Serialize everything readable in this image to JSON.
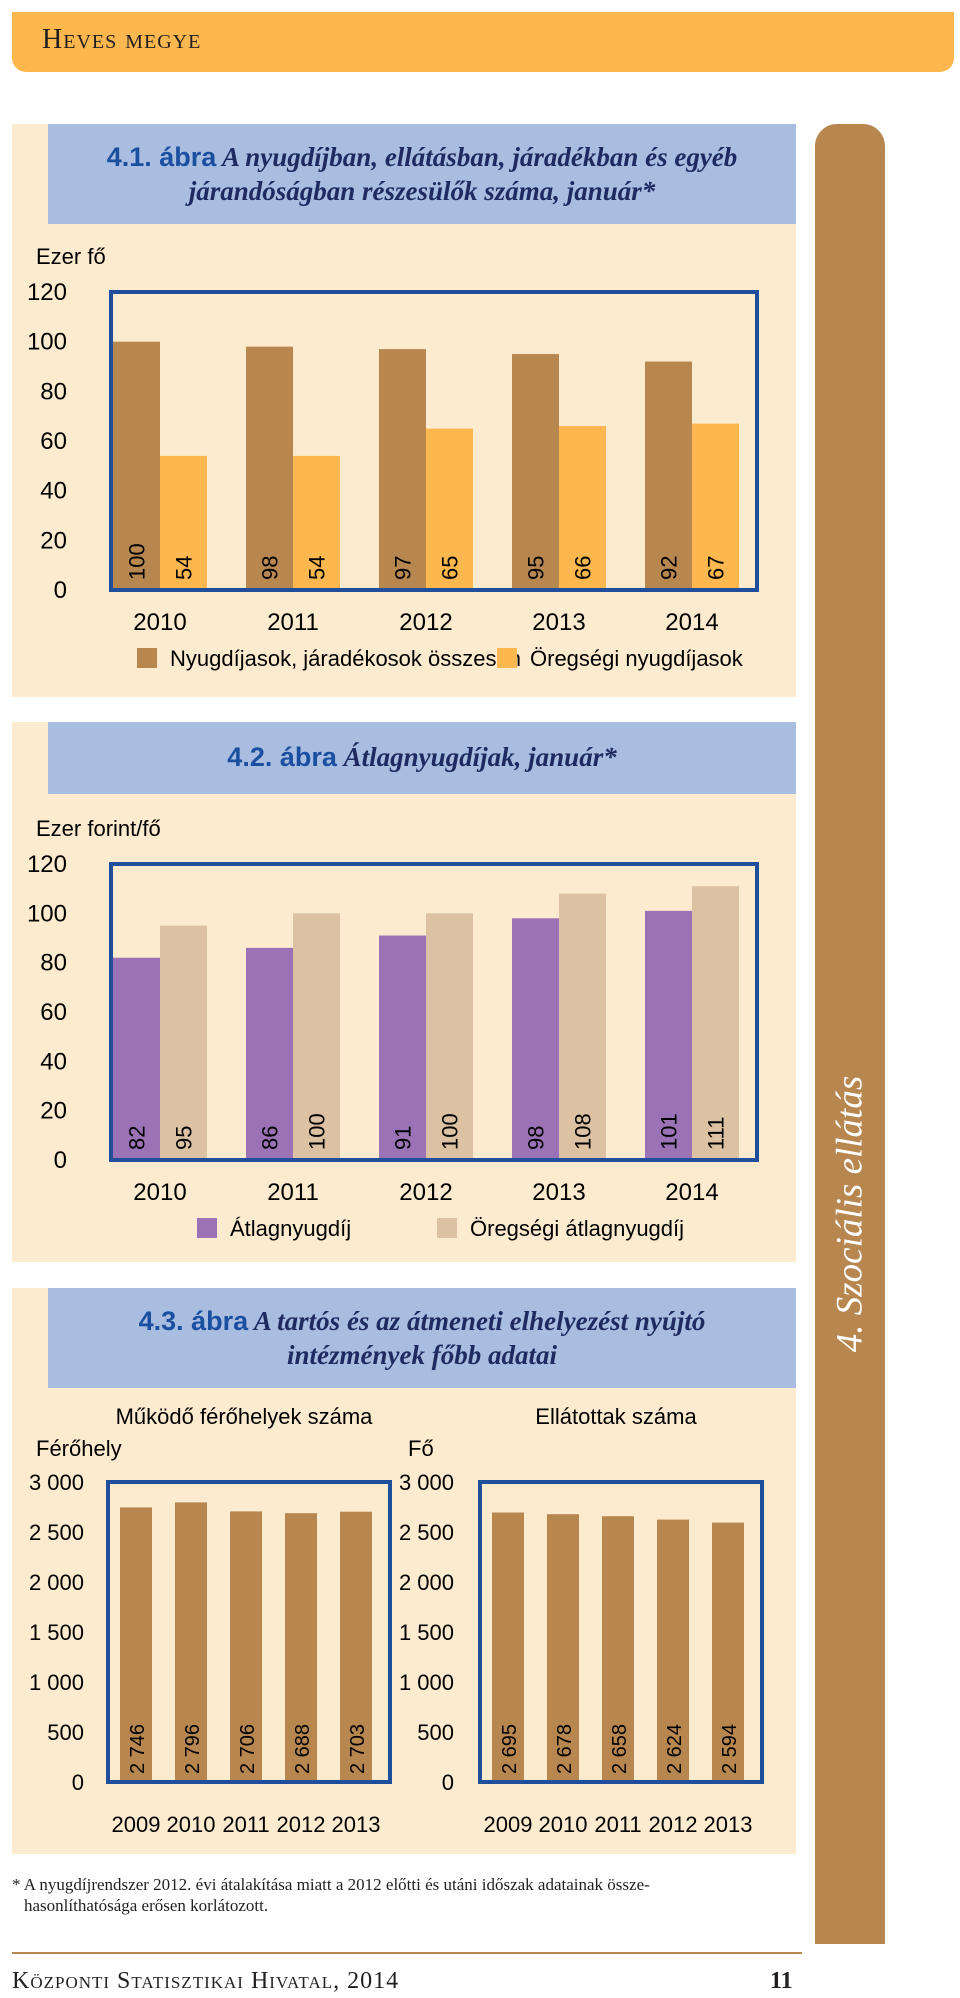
{
  "header": {
    "title": "Heves megye"
  },
  "side_tab": {
    "label": "4. Szociális ellátás"
  },
  "figures": {
    "fig1": {
      "number": "4.1. ábra",
      "title_line1": "A nyugdíjban, ellátásban, járadékban és egyéb",
      "title_line2": "járandóságban részesülők száma, január*"
    },
    "fig2": {
      "number": "4.2. ábra",
      "title": "Átlagnyugdíjak, január*"
    },
    "fig3": {
      "number": "4.3. ábra",
      "title_line1": "A tartós és az átmeneti elhelyezést nyújtó",
      "title_line2": "intézmények főbb adatai"
    }
  },
  "colors": {
    "brown": "#b8864f",
    "yellow": "#fcb74f",
    "purple": "#9a72b5",
    "beige": "#dcc1a2",
    "axis_blue": "#1f4e9c",
    "panel_bg": "#fdebcf",
    "title_bg": "#a9bde0"
  },
  "chart_data": [
    {
      "type": "bar",
      "title": "A nyugdíjban, ellátásban, járadékban és egyéb járandóságban részesülők száma, január*",
      "ylabel": "Ezer fő",
      "yticks": [
        "120",
        "100",
        "80",
        "60",
        "40",
        "20",
        "0"
      ],
      "ylim": [
        0,
        120
      ],
      "categories": [
        "2010",
        "2011",
        "2012",
        "2013",
        "2014"
      ],
      "series": [
        {
          "name": "Nyugdíjasok, járadékosok összesen",
          "color": "#b8864f",
          "values": [
            100,
            98,
            97,
            95,
            92
          ]
        },
        {
          "name": "Öregségi nyugdíjasok",
          "color": "#fcb74f",
          "values": [
            54,
            54,
            65,
            66,
            67
          ]
        }
      ],
      "legend": "bottom",
      "grid": false
    },
    {
      "type": "bar",
      "title": "Átlagnyugdíjak, január*",
      "ylabel": "Ezer forint/fő",
      "yticks": [
        "120",
        "100",
        "80",
        "60",
        "40",
        "20",
        "0"
      ],
      "ylim": [
        0,
        120
      ],
      "categories": [
        "2010",
        "2011",
        "2012",
        "2013",
        "2014"
      ],
      "series": [
        {
          "name": "Átlagnyugdíj",
          "color": "#9a72b5",
          "values": [
            82,
            86,
            91,
            98,
            101
          ]
        },
        {
          "name": "Öregségi átlagnyugdíj",
          "color": "#dcc1a2",
          "values": [
            95,
            100,
            100,
            108,
            111
          ]
        }
      ],
      "legend": "bottom",
      "grid": false
    },
    {
      "type": "bar",
      "subtitle": "Működő férőhelyek száma",
      "ylabel": "Férőhely",
      "yticks": [
        "3 000",
        "2 500",
        "2 000",
        "1 500",
        "1 000",
        "500",
        "0"
      ],
      "ylim": [
        0,
        3000
      ],
      "categories": [
        "2009",
        "2010",
        "2011",
        "2012",
        "2013"
      ],
      "values": [
        2746,
        2796,
        2706,
        2688,
        2703
      ],
      "value_labels": [
        "2 746",
        "2 796",
        "2 706",
        "2 688",
        "2 703"
      ],
      "color": "#b8864f",
      "grid": false
    },
    {
      "type": "bar",
      "subtitle": "Ellátottak száma",
      "ylabel": "Fő",
      "yticks": [
        "3 000",
        "2 500",
        "2 000",
        "1 500",
        "1 000",
        "500",
        "0"
      ],
      "ylim": [
        0,
        3000
      ],
      "categories": [
        "2009",
        "2010",
        "2011",
        "2012",
        "2013"
      ],
      "values": [
        2695,
        2678,
        2658,
        2624,
        2594
      ],
      "value_labels": [
        "2 695",
        "2 678",
        "2 658",
        "2 624",
        "2 594"
      ],
      "color": "#b8864f",
      "grid": false
    }
  ],
  "footnote": {
    "line1": "* A nyugdíjrendszer 2012. évi átalakítása miatt a 2012 előtti és utáni időszak adatainak össze-",
    "line2": "hasonlíthatósága erősen korlátozott."
  },
  "footer": {
    "org": "Központi Statisztikai Hivatal, 2014",
    "page": "11"
  }
}
